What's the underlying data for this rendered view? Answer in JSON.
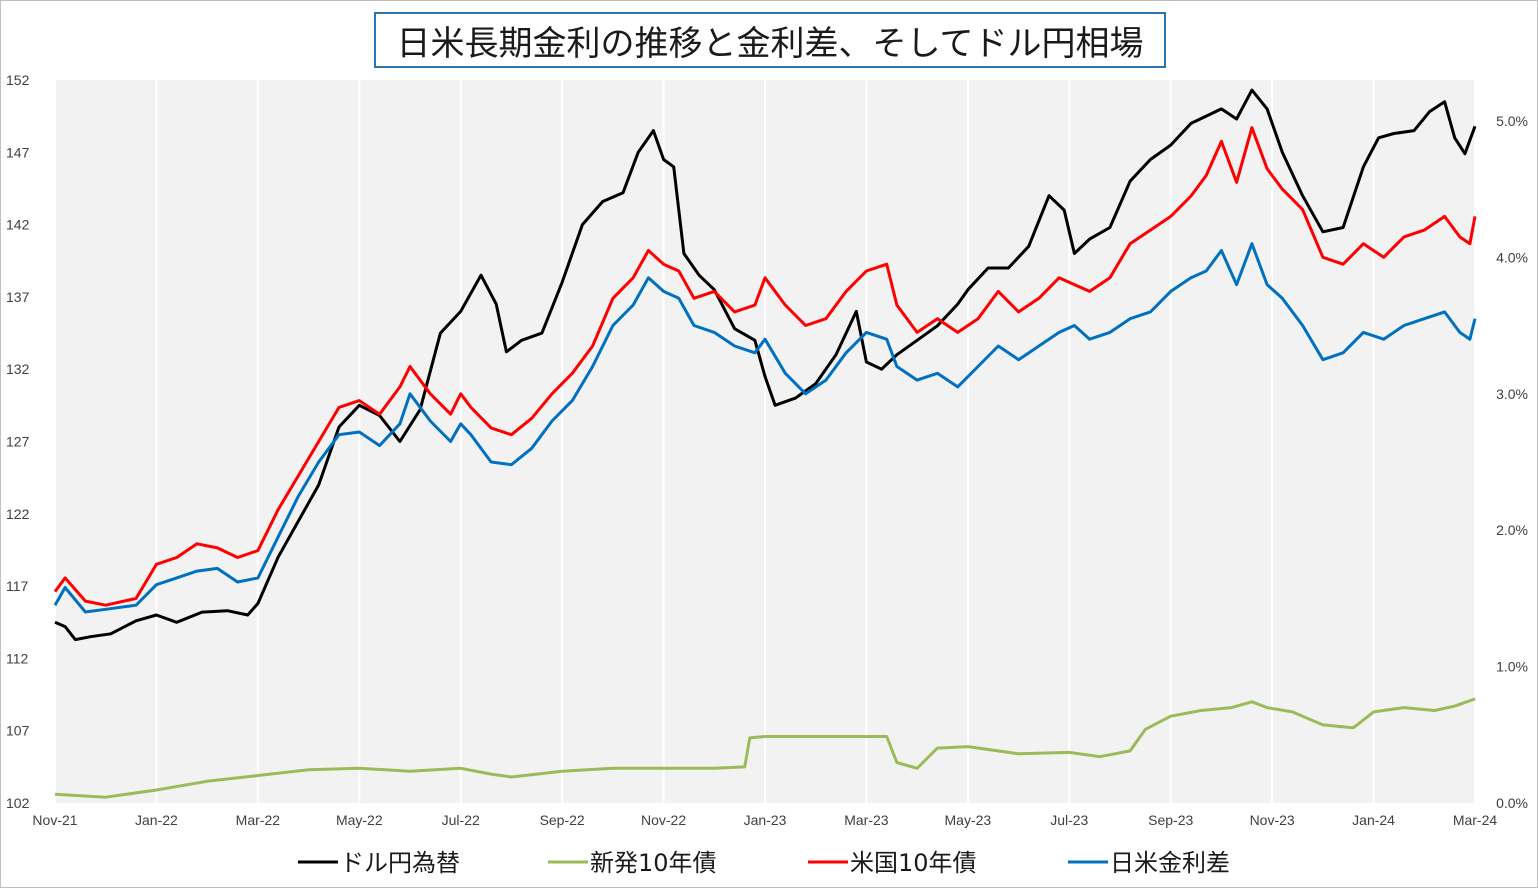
{
  "chart_data": {
    "title": "日米長期金利の推移と金利差、そしてドル円相場",
    "type": "line",
    "x_tick_labels": [
      "Nov-21",
      "Jan-22",
      "Mar-22",
      "May-22",
      "Jul-22",
      "Sep-22",
      "Nov-22",
      "Jan-23",
      "Mar-23",
      "May-23",
      "Jul-23",
      "Sep-23",
      "Nov-23",
      "Jan-24",
      "Mar-24"
    ],
    "y_left": {
      "ylim": [
        102,
        152
      ],
      "ticks": [
        152,
        147,
        142,
        137,
        132,
        127,
        122,
        117,
        112,
        107,
        102
      ]
    },
    "y_right": {
      "ylim": [
        0.0,
        5.3
      ],
      "ticks": [
        "5.0%",
        "4.0%",
        "3.0%",
        "2.0%",
        "1.0%",
        "0.0%"
      ],
      "tick_values": [
        5.0,
        4.0,
        3.0,
        2.0,
        1.0,
        0.0
      ]
    },
    "grid": "vertical",
    "legend_position": "bottom",
    "series": [
      {
        "name": "ドル円為替",
        "axis": "left",
        "color": "#000000",
        "points": [
          [
            0,
            114.5
          ],
          [
            0.1,
            114.2
          ],
          [
            0.2,
            113.3
          ],
          [
            0.35,
            113.5
          ],
          [
            0.55,
            113.7
          ],
          [
            0.8,
            114.6
          ],
          [
            1.0,
            115.0
          ],
          [
            1.2,
            114.5
          ],
          [
            1.45,
            115.2
          ],
          [
            1.7,
            115.3
          ],
          [
            1.9,
            115.0
          ],
          [
            2.0,
            115.8
          ],
          [
            2.2,
            119.0
          ],
          [
            2.4,
            121.5
          ],
          [
            2.6,
            124.0
          ],
          [
            2.8,
            128.0
          ],
          [
            3.0,
            129.5
          ],
          [
            3.2,
            128.8
          ],
          [
            3.4,
            127.0
          ],
          [
            3.6,
            129.2
          ],
          [
            3.8,
            134.5
          ],
          [
            4.0,
            136.0
          ],
          [
            4.2,
            138.5
          ],
          [
            4.35,
            136.5
          ],
          [
            4.45,
            133.2
          ],
          [
            4.6,
            134.0
          ],
          [
            4.8,
            134.5
          ],
          [
            5.0,
            138.0
          ],
          [
            5.2,
            142.0
          ],
          [
            5.4,
            143.6
          ],
          [
            5.6,
            144.2
          ],
          [
            5.75,
            147.0
          ],
          [
            5.9,
            148.5
          ],
          [
            6.0,
            146.5
          ],
          [
            6.1,
            146.0
          ],
          [
            6.2,
            140.0
          ],
          [
            6.35,
            138.5
          ],
          [
            6.5,
            137.5
          ],
          [
            6.7,
            134.8
          ],
          [
            6.9,
            134.0
          ],
          [
            7.0,
            131.5
          ],
          [
            7.1,
            129.5
          ],
          [
            7.3,
            130.0
          ],
          [
            7.5,
            131.0
          ],
          [
            7.7,
            133.0
          ],
          [
            7.9,
            136.0
          ],
          [
            8.0,
            132.5
          ],
          [
            8.15,
            132.0
          ],
          [
            8.3,
            133.0
          ],
          [
            8.5,
            134.0
          ],
          [
            8.7,
            135.0
          ],
          [
            8.9,
            136.5
          ],
          [
            9.0,
            137.5
          ],
          [
            9.2,
            139.0
          ],
          [
            9.4,
            139.0
          ],
          [
            9.6,
            140.5
          ],
          [
            9.8,
            144.0
          ],
          [
            9.95,
            143.0
          ],
          [
            10.05,
            140.0
          ],
          [
            10.2,
            141.0
          ],
          [
            10.4,
            141.8
          ],
          [
            10.6,
            145.0
          ],
          [
            10.8,
            146.5
          ],
          [
            11.0,
            147.5
          ],
          [
            11.2,
            149.0
          ],
          [
            11.35,
            149.5
          ],
          [
            11.5,
            150.0
          ],
          [
            11.65,
            149.3
          ],
          [
            11.8,
            151.3
          ],
          [
            11.95,
            150.0
          ],
          [
            12.1,
            147.0
          ],
          [
            12.3,
            144.0
          ],
          [
            12.5,
            141.5
          ],
          [
            12.7,
            141.8
          ],
          [
            12.9,
            146.0
          ],
          [
            13.05,
            148.0
          ],
          [
            13.2,
            148.3
          ],
          [
            13.4,
            148.5
          ],
          [
            13.55,
            149.8
          ],
          [
            13.7,
            150.5
          ],
          [
            13.8,
            148.0
          ],
          [
            13.9,
            146.9
          ],
          [
            14.0,
            148.8
          ]
        ]
      },
      {
        "name": "新発10年債",
        "axis": "left",
        "color": "#9bbb59",
        "points": [
          [
            0,
            102.6
          ],
          [
            0.5,
            102.4
          ],
          [
            1.0,
            102.9
          ],
          [
            1.5,
            103.5
          ],
          [
            2.0,
            103.9
          ],
          [
            2.5,
            104.3
          ],
          [
            3.0,
            104.4
          ],
          [
            3.5,
            104.2
          ],
          [
            4.0,
            104.4
          ],
          [
            4.3,
            104.0
          ],
          [
            4.5,
            103.8
          ],
          [
            5.0,
            104.2
          ],
          [
            5.5,
            104.4
          ],
          [
            6.0,
            104.4
          ],
          [
            6.5,
            104.4
          ],
          [
            6.8,
            104.5
          ],
          [
            6.85,
            106.5
          ],
          [
            7.0,
            106.6
          ],
          [
            7.5,
            106.6
          ],
          [
            8.0,
            106.6
          ],
          [
            8.2,
            106.6
          ],
          [
            8.3,
            104.8
          ],
          [
            8.5,
            104.4
          ],
          [
            8.7,
            105.8
          ],
          [
            9.0,
            105.9
          ],
          [
            9.5,
            105.4
          ],
          [
            10.0,
            105.5
          ],
          [
            10.3,
            105.2
          ],
          [
            10.6,
            105.6
          ],
          [
            10.75,
            107.1
          ],
          [
            11.0,
            108.0
          ],
          [
            11.3,
            108.4
          ],
          [
            11.6,
            108.6
          ],
          [
            11.8,
            109.0
          ],
          [
            11.95,
            108.6
          ],
          [
            12.2,
            108.3
          ],
          [
            12.5,
            107.4
          ],
          [
            12.8,
            107.2
          ],
          [
            13.0,
            108.3
          ],
          [
            13.3,
            108.6
          ],
          [
            13.6,
            108.4
          ],
          [
            13.8,
            108.7
          ],
          [
            14.0,
            109.2
          ]
        ]
      },
      {
        "name": "米国10年債",
        "axis": "right",
        "color": "#ff0000",
        "points": [
          [
            0,
            1.55
          ],
          [
            0.1,
            1.65
          ],
          [
            0.3,
            1.48
          ],
          [
            0.5,
            1.45
          ],
          [
            0.8,
            1.5
          ],
          [
            1.0,
            1.75
          ],
          [
            1.2,
            1.8
          ],
          [
            1.4,
            1.9
          ],
          [
            1.6,
            1.87
          ],
          [
            1.8,
            1.8
          ],
          [
            2.0,
            1.85
          ],
          [
            2.2,
            2.15
          ],
          [
            2.4,
            2.4
          ],
          [
            2.6,
            2.65
          ],
          [
            2.8,
            2.9
          ],
          [
            3.0,
            2.95
          ],
          [
            3.2,
            2.85
          ],
          [
            3.4,
            3.05
          ],
          [
            3.5,
            3.2
          ],
          [
            3.7,
            3.0
          ],
          [
            3.9,
            2.85
          ],
          [
            4.0,
            3.0
          ],
          [
            4.1,
            2.9
          ],
          [
            4.3,
            2.75
          ],
          [
            4.5,
            2.7
          ],
          [
            4.7,
            2.82
          ],
          [
            4.9,
            3.0
          ],
          [
            5.1,
            3.15
          ],
          [
            5.3,
            3.35
          ],
          [
            5.5,
            3.7
          ],
          [
            5.7,
            3.85
          ],
          [
            5.85,
            4.05
          ],
          [
            6.0,
            3.95
          ],
          [
            6.15,
            3.9
          ],
          [
            6.3,
            3.7
          ],
          [
            6.5,
            3.75
          ],
          [
            6.7,
            3.6
          ],
          [
            6.9,
            3.65
          ],
          [
            7.0,
            3.85
          ],
          [
            7.2,
            3.65
          ],
          [
            7.4,
            3.5
          ],
          [
            7.6,
            3.55
          ],
          [
            7.8,
            3.75
          ],
          [
            8.0,
            3.9
          ],
          [
            8.2,
            3.95
          ],
          [
            8.3,
            3.65
          ],
          [
            8.5,
            3.45
          ],
          [
            8.7,
            3.55
          ],
          [
            8.9,
            3.45
          ],
          [
            9.1,
            3.55
          ],
          [
            9.3,
            3.75
          ],
          [
            9.5,
            3.6
          ],
          [
            9.7,
            3.7
          ],
          [
            9.9,
            3.85
          ],
          [
            10.05,
            3.8
          ],
          [
            10.2,
            3.75
          ],
          [
            10.4,
            3.85
          ],
          [
            10.6,
            4.1
          ],
          [
            10.8,
            4.2
          ],
          [
            11.0,
            4.3
          ],
          [
            11.2,
            4.45
          ],
          [
            11.35,
            4.6
          ],
          [
            11.5,
            4.85
          ],
          [
            11.65,
            4.55
          ],
          [
            11.8,
            4.95
          ],
          [
            11.95,
            4.65
          ],
          [
            12.1,
            4.5
          ],
          [
            12.3,
            4.35
          ],
          [
            12.5,
            4.0
          ],
          [
            12.7,
            3.95
          ],
          [
            12.9,
            4.1
          ],
          [
            13.1,
            4.0
          ],
          [
            13.3,
            4.15
          ],
          [
            13.5,
            4.2
          ],
          [
            13.7,
            4.3
          ],
          [
            13.85,
            4.15
          ],
          [
            13.95,
            4.1
          ],
          [
            14.0,
            4.3
          ]
        ]
      },
      {
        "name": "日米金利差",
        "axis": "right",
        "color": "#0070c0",
        "points": [
          [
            0,
            1.45
          ],
          [
            0.1,
            1.58
          ],
          [
            0.3,
            1.4
          ],
          [
            0.5,
            1.42
          ],
          [
            0.8,
            1.45
          ],
          [
            1.0,
            1.6
          ],
          [
            1.2,
            1.65
          ],
          [
            1.4,
            1.7
          ],
          [
            1.6,
            1.72
          ],
          [
            1.8,
            1.62
          ],
          [
            2.0,
            1.65
          ],
          [
            2.2,
            1.95
          ],
          [
            2.4,
            2.25
          ],
          [
            2.6,
            2.5
          ],
          [
            2.8,
            2.7
          ],
          [
            3.0,
            2.72
          ],
          [
            3.2,
            2.62
          ],
          [
            3.4,
            2.78
          ],
          [
            3.5,
            3.0
          ],
          [
            3.7,
            2.8
          ],
          [
            3.9,
            2.65
          ],
          [
            4.0,
            2.78
          ],
          [
            4.1,
            2.7
          ],
          [
            4.3,
            2.5
          ],
          [
            4.5,
            2.48
          ],
          [
            4.7,
            2.6
          ],
          [
            4.9,
            2.8
          ],
          [
            5.1,
            2.95
          ],
          [
            5.3,
            3.2
          ],
          [
            5.5,
            3.5
          ],
          [
            5.7,
            3.65
          ],
          [
            5.85,
            3.85
          ],
          [
            6.0,
            3.75
          ],
          [
            6.15,
            3.7
          ],
          [
            6.3,
            3.5
          ],
          [
            6.5,
            3.45
          ],
          [
            6.7,
            3.35
          ],
          [
            6.9,
            3.3
          ],
          [
            7.0,
            3.4
          ],
          [
            7.2,
            3.15
          ],
          [
            7.4,
            3.0
          ],
          [
            7.6,
            3.1
          ],
          [
            7.8,
            3.3
          ],
          [
            8.0,
            3.45
          ],
          [
            8.2,
            3.4
          ],
          [
            8.3,
            3.2
          ],
          [
            8.5,
            3.1
          ],
          [
            8.7,
            3.15
          ],
          [
            8.9,
            3.05
          ],
          [
            9.1,
            3.2
          ],
          [
            9.3,
            3.35
          ],
          [
            9.5,
            3.25
          ],
          [
            9.7,
            3.35
          ],
          [
            9.9,
            3.45
          ],
          [
            10.05,
            3.5
          ],
          [
            10.2,
            3.4
          ],
          [
            10.4,
            3.45
          ],
          [
            10.6,
            3.55
          ],
          [
            10.8,
            3.6
          ],
          [
            11.0,
            3.75
          ],
          [
            11.2,
            3.85
          ],
          [
            11.35,
            3.9
          ],
          [
            11.5,
            4.05
          ],
          [
            11.65,
            3.8
          ],
          [
            11.8,
            4.1
          ],
          [
            11.95,
            3.8
          ],
          [
            12.1,
            3.7
          ],
          [
            12.3,
            3.5
          ],
          [
            12.5,
            3.25
          ],
          [
            12.7,
            3.3
          ],
          [
            12.9,
            3.45
          ],
          [
            13.1,
            3.4
          ],
          [
            13.3,
            3.5
          ],
          [
            13.5,
            3.55
          ],
          [
            13.7,
            3.6
          ],
          [
            13.85,
            3.45
          ],
          [
            13.95,
            3.4
          ],
          [
            14.0,
            3.55
          ]
        ]
      }
    ]
  }
}
